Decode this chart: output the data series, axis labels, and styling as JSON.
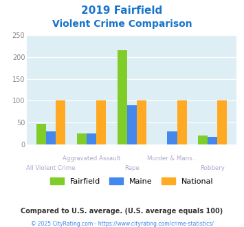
{
  "title_line1": "2019 Fairfield",
  "title_line2": "Violent Crime Comparison",
  "title_color": "#1874CD",
  "categories": [
    "All Violent Crime",
    "Aggravated Assault",
    "Rape",
    "Murder & Mans...",
    "Robbery"
  ],
  "fairfield": [
    46,
    25,
    215,
    0,
    20
  ],
  "maine": [
    30,
    24,
    90,
    29,
    17
  ],
  "national": [
    100,
    100,
    100,
    100,
    100
  ],
  "colors": {
    "fairfield": "#80cc28",
    "maine": "#4488ee",
    "national": "#ffaa22"
  },
  "ylim": [
    0,
    250
  ],
  "yticks": [
    0,
    50,
    100,
    150,
    200,
    250
  ],
  "background_color": "#ddeef5",
  "legend_labels": [
    "Fairfield",
    "Maine",
    "National"
  ],
  "footnote1": "Compared to U.S. average. (U.S. average equals 100)",
  "footnote2": "© 2025 CityRating.com - https://www.cityrating.com/crime-statistics/",
  "footnote1_color": "#333333",
  "footnote2_color": "#4488ee",
  "label_color": "#aaaacc"
}
